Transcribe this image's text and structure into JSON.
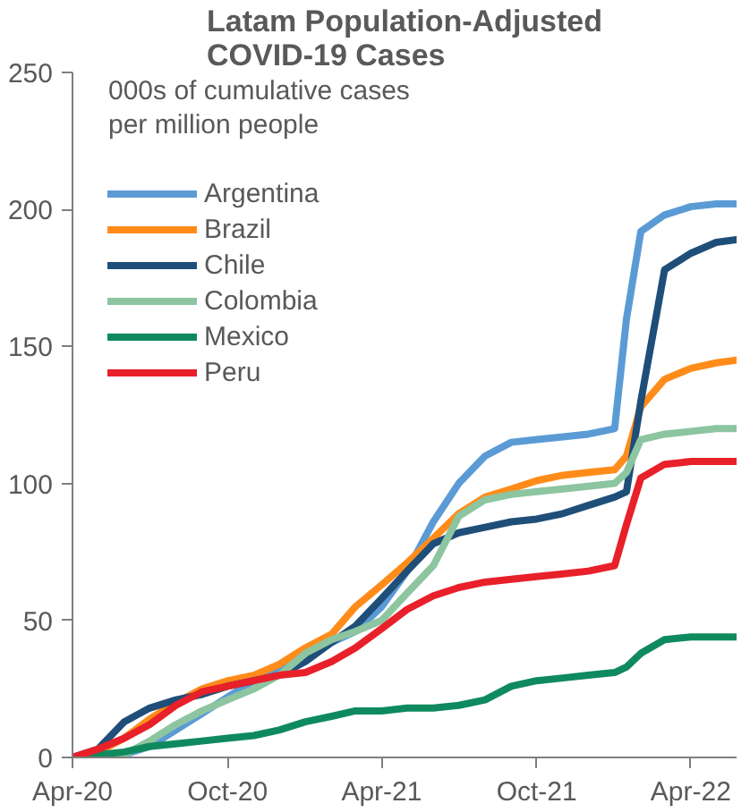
{
  "chart_data": {
    "type": "line",
    "title": "Latam Population-Adjusted\nCOVID-19 Cases",
    "annotations": [
      "000s of cumulative cases per million people"
    ],
    "x": [
      "2020-04-01",
      "2020-05-01",
      "2020-06-01",
      "2020-07-01",
      "2020-08-01",
      "2020-09-01",
      "2020-10-01",
      "2020-11-01",
      "2020-12-01",
      "2021-01-01",
      "2021-02-01",
      "2021-03-01",
      "2021-04-01",
      "2021-05-01",
      "2021-06-01",
      "2021-07-01",
      "2021-08-01",
      "2021-09-01",
      "2021-10-01",
      "2021-11-01",
      "2021-12-01",
      "2022-01-01",
      "2022-01-15",
      "2022-02-01",
      "2022-03-01",
      "2022-04-01",
      "2022-05-01",
      "2022-05-25"
    ],
    "series": [
      {
        "name": "Argentina",
        "color": "#5b9bd5",
        "values": [
          0,
          0,
          1,
          4,
          10,
          16,
          22,
          28,
          33,
          37,
          42,
          46,
          55,
          68,
          86,
          100,
          110,
          115,
          116,
          117,
          118,
          120,
          160,
          192,
          198,
          201,
          202,
          202
        ]
      },
      {
        "name": "Brazil",
        "color": "#ff8c1a",
        "values": [
          0,
          2,
          7,
          14,
          20,
          25,
          28,
          30,
          34,
          40,
          45,
          55,
          63,
          71,
          80,
          89,
          95,
          98,
          101,
          103,
          104,
          105,
          110,
          128,
          138,
          142,
          144,
          145
        ]
      },
      {
        "name": "Chile",
        "color": "#1f4e79",
        "values": [
          0,
          3,
          13,
          18,
          21,
          23,
          26,
          28,
          30,
          35,
          42,
          48,
          58,
          68,
          78,
          82,
          84,
          86,
          87,
          89,
          92,
          95,
          97,
          130,
          178,
          184,
          188,
          189
        ]
      },
      {
        "name": "Colombia",
        "color": "#8cc5a0",
        "values": [
          0,
          0,
          1,
          6,
          12,
          17,
          21,
          25,
          30,
          38,
          43,
          46,
          50,
          60,
          70,
          88,
          94,
          96,
          97,
          98,
          99,
          100,
          104,
          116,
          118,
          119,
          120,
          120
        ]
      },
      {
        "name": "Mexico",
        "color": "#0f8a5f",
        "values": [
          0,
          1,
          2,
          4,
          5,
          6,
          7,
          8,
          10,
          13,
          15,
          17,
          17,
          18,
          18,
          19,
          21,
          26,
          28,
          29,
          30,
          31,
          33,
          38,
          43,
          44,
          44,
          44
        ]
      },
      {
        "name": "Peru",
        "color": "#e8202a",
        "values": [
          0,
          3,
          7,
          12,
          19,
          24,
          26,
          28,
          30,
          31,
          35,
          40,
          47,
          54,
          59,
          62,
          64,
          65,
          66,
          67,
          68,
          70,
          85,
          102,
          107,
          108,
          108,
          108
        ]
      }
    ],
    "xlim": [
      "2020-04-01",
      "2022-05-25"
    ],
    "xticks": [
      {
        "value": "2020-04-01",
        "label": "Apr-20"
      },
      {
        "value": "2020-10-01",
        "label": "Oct-20"
      },
      {
        "value": "2021-04-01",
        "label": "Apr-21"
      },
      {
        "value": "2021-10-01",
        "label": "Oct-21"
      },
      {
        "value": "2022-04-01",
        "label": "Apr-22"
      }
    ],
    "ylim": [
      0,
      250
    ],
    "yticks": [
      0,
      50,
      100,
      150,
      200,
      250
    ],
    "grid": false,
    "legend": "top left",
    "line_style": "solid",
    "marker": "none"
  }
}
